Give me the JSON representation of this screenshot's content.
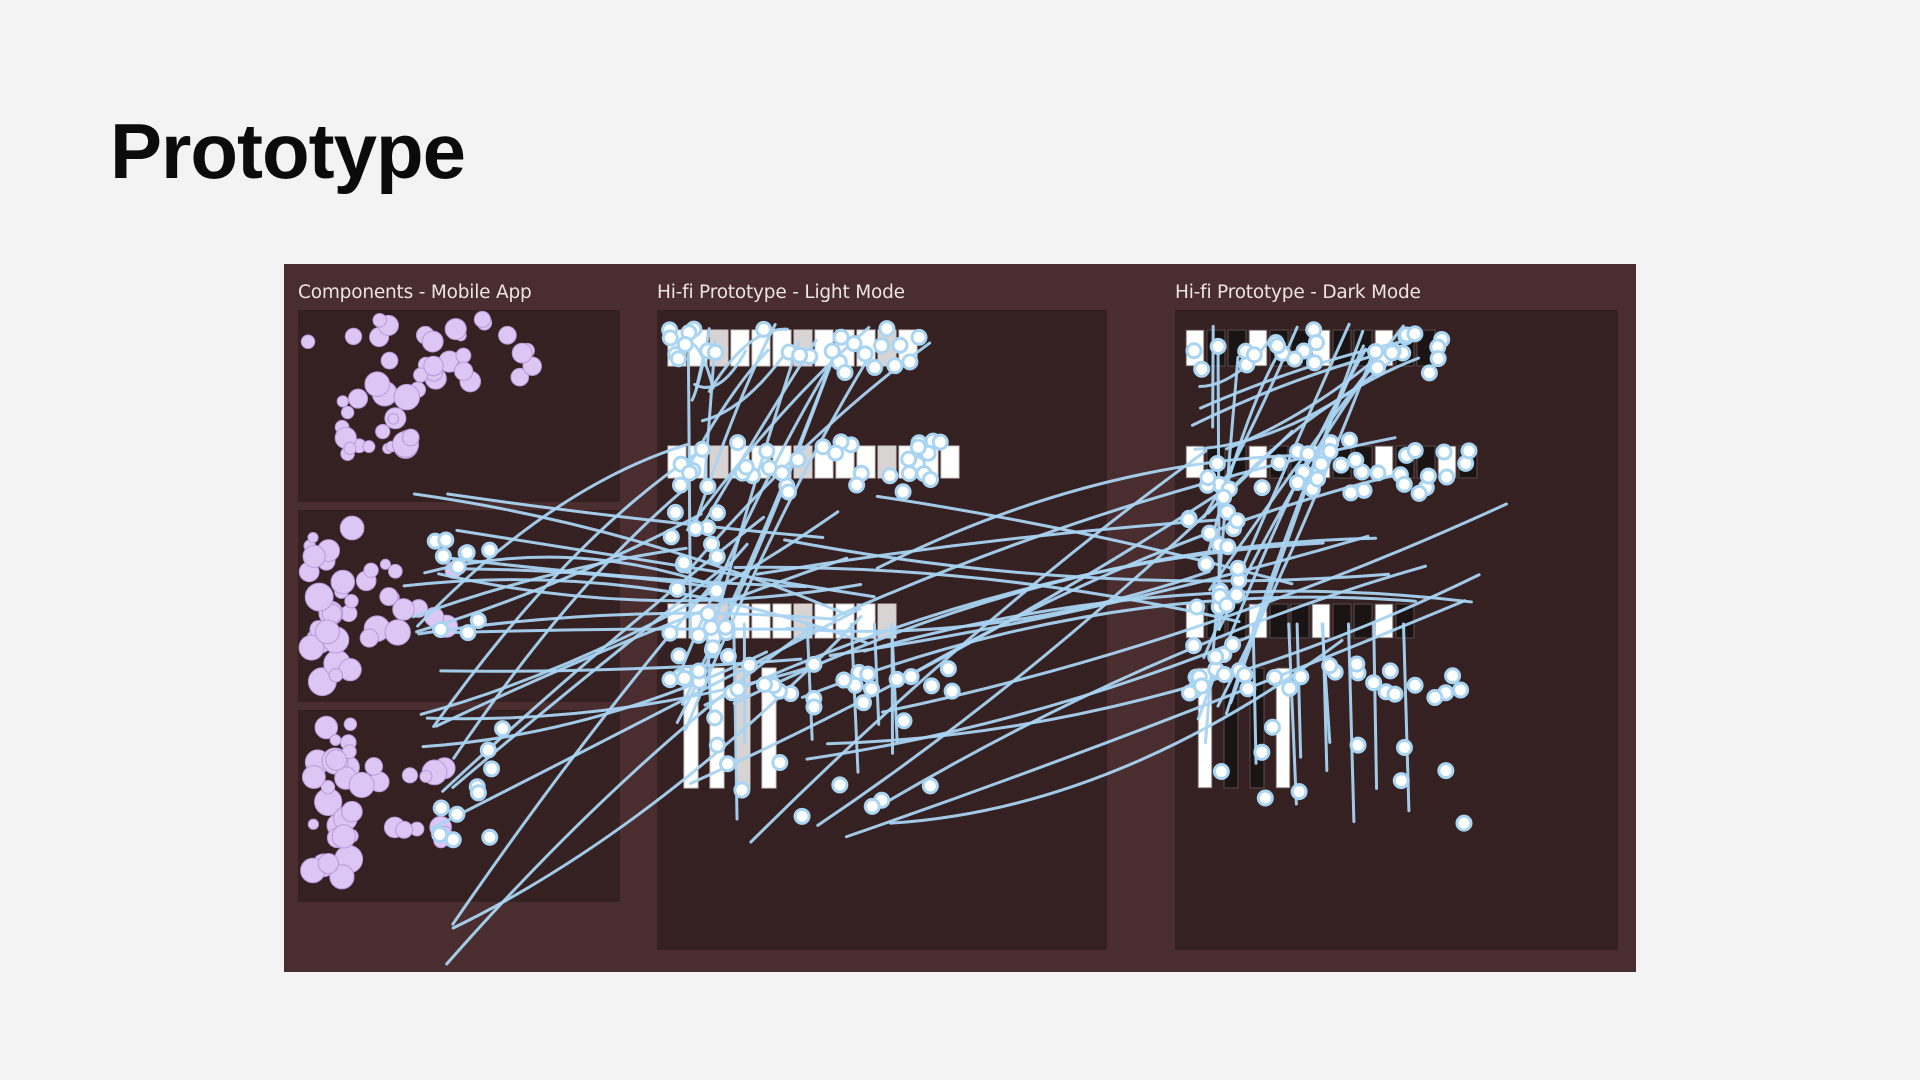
{
  "page": {
    "title": "Prototype"
  },
  "canvas": {
    "background": "#4a2d2f",
    "frame_color": "#352122",
    "connector_color": "#a9d4f2",
    "component_color": "#dcc6f4",
    "sections": [
      {
        "label": "Components - Mobile App"
      },
      {
        "label": "Hi-fi Prototype - Light Mode"
      },
      {
        "label": "Hi-fi Prototype - Dark Mode"
      }
    ]
  }
}
